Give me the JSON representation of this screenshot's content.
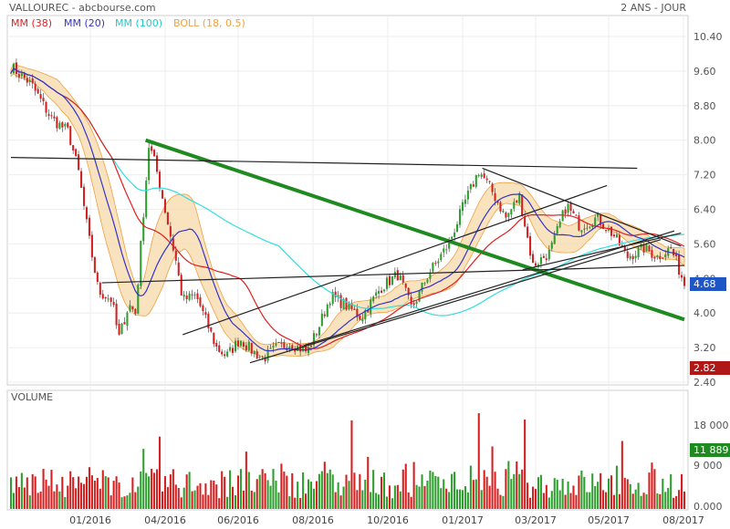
{
  "header": {
    "title": "VALLOUREC - abcbourse.com",
    "period": "2 ANS - JOUR"
  },
  "colors": {
    "up": "#2e9e2e",
    "down": "#d42020",
    "mm38": "#e02020",
    "mm20": "#3333cc",
    "mm100": "#33dddd",
    "boll": "#f0a040",
    "trend_main": "#1f8a1f",
    "trend_line": "#222222",
    "price_badge": "#1e56c8",
    "low_badge": "#b01818",
    "vol_badge": "#1f8a1f"
  },
  "chart_data": {
    "type": "candlestick",
    "legend": [
      {
        "label": "MM (38)",
        "color": "#e02020"
      },
      {
        "label": "MM (20)",
        "color": "#3333cc"
      },
      {
        "label": "MM (100)",
        "color": "#33dddd"
      },
      {
        "label": "BOLL (18, 0.5)",
        "color": "#f0a040"
      }
    ],
    "price_axis": {
      "min": 2.4,
      "max": 10.4,
      "ticks": [
        "10.40",
        "9.60",
        "8.80",
        "8.00",
        "7.20",
        "6.40",
        "5.60",
        "4.80",
        "4.00",
        "3.20",
        "2.40"
      ]
    },
    "last_price": "4.68",
    "low_marker": "2.82",
    "volume": {
      "title": "VOLUME",
      "ticks": [
        "18 000",
        "9 000",
        "0.000"
      ],
      "last_value": "11 889",
      "max": 24000
    },
    "date_labels": [
      "01/2016",
      "04/2016",
      "06/2016",
      "08/2016",
      "10/2016",
      "01/2017",
      "03/2017",
      "05/2017",
      "08/2017"
    ],
    "price_path": [
      [
        0,
        9.7
      ],
      [
        0.03,
        9.3
      ],
      [
        0.06,
        8.5
      ],
      [
        0.085,
        8.2
      ],
      [
        0.1,
        7.3
      ],
      [
        0.115,
        5.8
      ],
      [
        0.13,
        4.5
      ],
      [
        0.15,
        4.3
      ],
      [
        0.16,
        3.4
      ],
      [
        0.175,
        4.2
      ],
      [
        0.185,
        4.0
      ],
      [
        0.195,
        6.0
      ],
      [
        0.205,
        7.9
      ],
      [
        0.215,
        7.4
      ],
      [
        0.23,
        6.3
      ],
      [
        0.245,
        5.2
      ],
      [
        0.255,
        4.3
      ],
      [
        0.275,
        4.4
      ],
      [
        0.29,
        3.8
      ],
      [
        0.305,
        3.2
      ],
      [
        0.32,
        3.0
      ],
      [
        0.34,
        3.4
      ],
      [
        0.36,
        3.1
      ],
      [
        0.375,
        2.95
      ],
      [
        0.395,
        3.2
      ],
      [
        0.415,
        3.3
      ],
      [
        0.44,
        3.1
      ],
      [
        0.455,
        3.6
      ],
      [
        0.475,
        4.4
      ],
      [
        0.495,
        4.2
      ],
      [
        0.52,
        3.9
      ],
      [
        0.55,
        4.6
      ],
      [
        0.575,
        4.9
      ],
      [
        0.595,
        4.1
      ],
      [
        0.62,
        4.9
      ],
      [
        0.65,
        5.6
      ],
      [
        0.675,
        6.6
      ],
      [
        0.695,
        7.3
      ],
      [
        0.715,
        6.8
      ],
      [
        0.735,
        6.2
      ],
      [
        0.755,
        6.7
      ],
      [
        0.775,
        5.1
      ],
      [
        0.8,
        5.4
      ],
      [
        0.825,
        6.5
      ],
      [
        0.845,
        6.0
      ],
      [
        0.87,
        6.2
      ],
      [
        0.895,
        5.8
      ],
      [
        0.915,
        5.3
      ],
      [
        0.94,
        5.5
      ],
      [
        0.96,
        5.3
      ],
      [
        0.98,
        5.5
      ],
      [
        1.0,
        4.68
      ]
    ],
    "trendlines": [
      {
        "kind": "main",
        "from": [
          0.2,
          8.0
        ],
        "to": [
          1.0,
          3.85
        ]
      },
      {
        "kind": "thin",
        "from": [
          0.0,
          7.6
        ],
        "to": [
          0.93,
          7.35
        ]
      },
      {
        "kind": "thin",
        "from": [
          0.135,
          4.7
        ],
        "to": [
          1.0,
          5.1
        ]
      },
      {
        "kind": "thin",
        "from": [
          0.255,
          3.5
        ],
        "to": [
          0.885,
          6.95
        ]
      },
      {
        "kind": "thin",
        "from": [
          0.355,
          2.85
        ],
        "to": [
          0.965,
          5.7
        ]
      },
      {
        "kind": "thin",
        "from": [
          0.435,
          3.25
        ],
        "to": [
          0.985,
          5.9
        ]
      },
      {
        "kind": "thin",
        "from": [
          0.7,
          7.35
        ],
        "to": [
          0.995,
          5.55
        ]
      },
      {
        "kind": "thin",
        "from": [
          0.76,
          5.0
        ],
        "to": [
          0.995,
          5.85
        ]
      }
    ]
  }
}
